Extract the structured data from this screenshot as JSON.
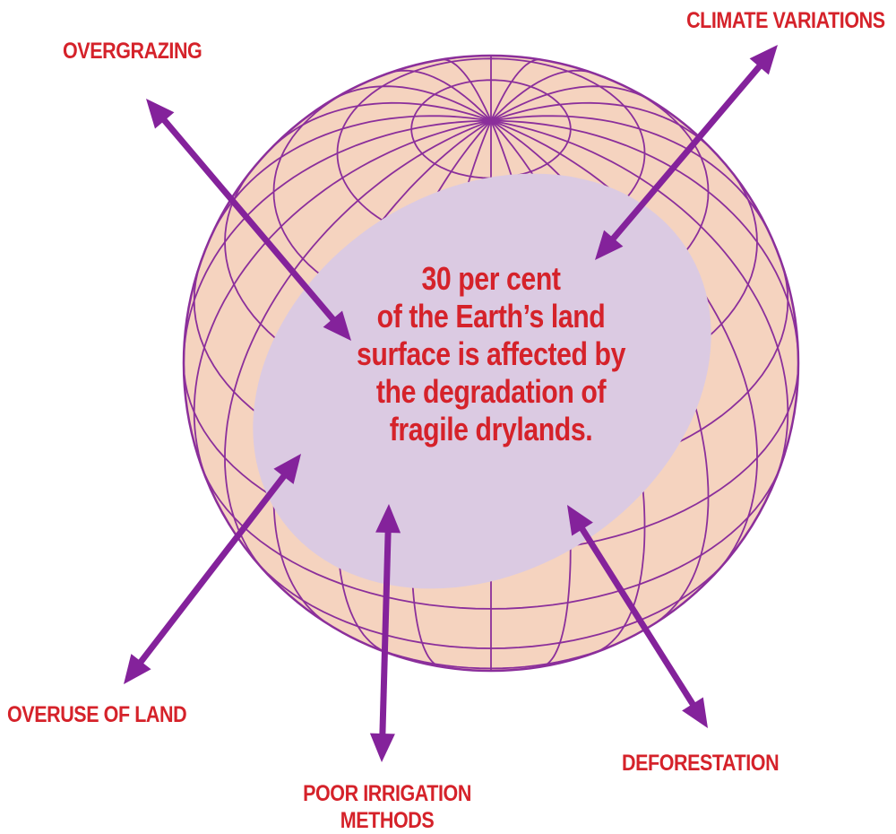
{
  "colors": {
    "label_red": "#d5222a",
    "arrow_purple": "#84229b",
    "globe_fill": "#f5d3bf",
    "globe_grid": "#8b2f9b",
    "drylands_fill": "#dbcae2"
  },
  "icons": {
    "globe": "globe-icon",
    "arrow": "double-headed-arrow-icon"
  },
  "labels": {
    "overgrazing": "OVERGRAZING",
    "climate_variations": "CLIMATE VARIATIONS",
    "overuse_of_land": "OVERUSE OF LAND",
    "poor_irrigation_line1": "POOR IRRIGATION",
    "poor_irrigation_line2": "METHODS",
    "deforestation": "DEFORESTATION"
  },
  "statement": {
    "line1": "30 per cent",
    "line2": "of the Earth’s land",
    "line3": "surface is affected by",
    "line4": "the degradation of",
    "line5": "fragile drylands."
  }
}
